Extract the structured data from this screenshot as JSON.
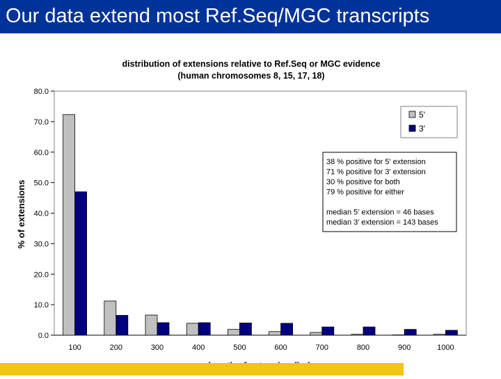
{
  "slide": {
    "title": "Our data extend most Ref.Seq/MGC transcripts",
    "title_bar_color": "#003399",
    "accent_band_color": "#f2c413"
  },
  "chart_data": {
    "type": "bar",
    "title": "distribution of extensions relative to Ref.Seq or MGC evidence",
    "subtitle": "(human chromosomes 8, 15, 17, 18)",
    "xlabel": "length of extension (bp)",
    "ylabel": "% of extensions",
    "categories": [
      "100",
      "200",
      "300",
      "400",
      "500",
      "600",
      "700",
      "800",
      "900",
      "1000"
    ],
    "ylim": [
      0,
      80
    ],
    "yticks": [
      "0.0",
      "10.0",
      "20.0",
      "30.0",
      "40.0",
      "50.0",
      "60.0",
      "70.0",
      "80.0"
    ],
    "grid": false,
    "legend_position": "top-right",
    "series": [
      {
        "name": "5'",
        "color": "#c0c0c0",
        "values": [
          72.3,
          11.2,
          6.6,
          3.9,
          1.9,
          1.2,
          0.9,
          0.3,
          0.1,
          0.3
        ]
      },
      {
        "name": "3'",
        "color": "#000080",
        "values": [
          47.0,
          6.5,
          4.1,
          4.1,
          4.0,
          3.9,
          2.7,
          2.7,
          1.9,
          1.6
        ]
      }
    ],
    "annotations": [
      "38 % positive for 5' extension",
      "71 % positive for 3' extension",
      "30 % positive for both",
      "79 % positive for either",
      "",
      "median 5' extension =  46 bases",
      "median 3' extension = 143 bases"
    ]
  }
}
